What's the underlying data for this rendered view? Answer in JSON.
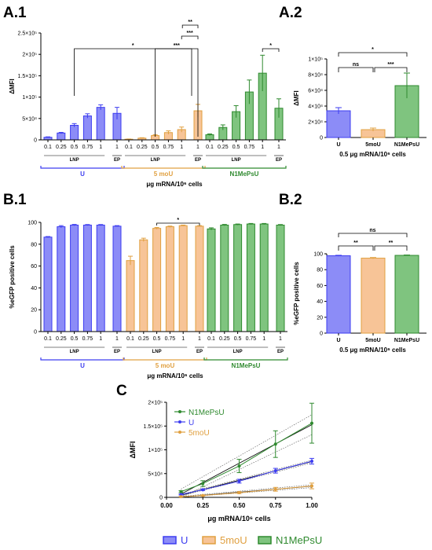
{
  "colors": {
    "U": "#3d3df0",
    "U_fill": "#8c8cf7",
    "5moU": "#e0a040",
    "5moU_fill": "#f7c497",
    "N1MePsU": "#2f8a2f",
    "N1MePsU_fill": "#7fc47f"
  },
  "panels": {
    "a1": {
      "label": "A.1"
    },
    "a2": {
      "label": "A.2"
    },
    "b1": {
      "label": "B.1"
    },
    "b2": {
      "label": "B.2"
    },
    "c": {
      "label": "C"
    }
  },
  "legend": {
    "items": [
      "U",
      "5moU",
      "N1MePsU"
    ]
  },
  "chart_data": [
    {
      "id": "A.1",
      "type": "bar",
      "ylabel": "ΔMFI",
      "xlabel": "μg mRNA/10⁶ cells",
      "ylim": [
        0,
        250000
      ],
      "yticks": [
        0,
        50000,
        100000,
        150000,
        200000,
        250000
      ],
      "ytick_labels": [
        "0",
        "5×10⁴",
        "1×10⁵",
        "1.5×10⁵",
        "2×10⁵",
        "2.5×10⁵"
      ],
      "categories": [
        "0.1",
        "0.25",
        "0.5",
        "0.75",
        "1",
        "1"
      ],
      "sublabels": [
        "LNP",
        "EP"
      ],
      "series": [
        {
          "name": "U",
          "values": [
            6000,
            16000,
            34000,
            56000,
            76000,
            62000
          ],
          "errors": [
            1000,
            1500,
            4000,
            5000,
            6000,
            14000
          ]
        },
        {
          "name": "5 moU",
          "values": [
            1500,
            4000,
            10000,
            17000,
            24000,
            68000
          ],
          "errors": [
            500,
            1000,
            2000,
            4000,
            6000,
            15000
          ]
        },
        {
          "name": "N1MePsU",
          "values": [
            12000,
            29000,
            66000,
            112000,
            156000,
            74000
          ],
          "errors": [
            2000,
            6000,
            14000,
            28000,
            42000,
            22000
          ]
        }
      ],
      "significance": [
        {
          "text": "*",
          "from": "U 0.5",
          "to": "U 1 EP"
        },
        {
          "text": "***",
          "from": "5moU 0.5",
          "to": "5moU 1 EP"
        },
        {
          "text": "***",
          "from": "5moU 1",
          "to": "5moU 1 EP"
        },
        {
          "text": "**",
          "from": "5moU 1 LNP",
          "to": "5moU 1 EP"
        },
        {
          "text": "*",
          "from": "N1MePsU 1",
          "to": "N1MePsU 1 EP"
        }
      ]
    },
    {
      "id": "A.2",
      "type": "bar",
      "ylabel": "ΔMFI",
      "xlabel": "0.5 μg mRNA/10⁶ cells",
      "ylim": [
        0,
        100000
      ],
      "yticks": [
        0,
        20000,
        40000,
        60000,
        80000,
        100000
      ],
      "ytick_labels": [
        "0",
        "2×10⁴",
        "4×10⁴",
        "6×10⁴",
        "8×10⁴",
        "1×10⁵"
      ],
      "categories": [
        "U",
        "5moU",
        "N1MePsU"
      ],
      "values": [
        34000,
        10000,
        66000
      ],
      "errors": [
        4000,
        2000,
        16000
      ],
      "significance": [
        {
          "text": "ns",
          "from": "U",
          "to": "5moU"
        },
        {
          "text": "***",
          "from": "5moU",
          "to": "N1MePsU"
        },
        {
          "text": "*",
          "from": "U",
          "to": "N1MePsU"
        }
      ]
    },
    {
      "id": "B.1",
      "type": "bar",
      "ylabel": "%eGFP positive cells",
      "xlabel": "μg mRNA/10⁶ cells",
      "ylim": [
        0,
        100
      ],
      "yticks": [
        0,
        20,
        40,
        60,
        80,
        100
      ],
      "ytick_labels": [
        "0",
        "20",
        "40",
        "60",
        "80",
        "100"
      ],
      "categories": [
        "0.1",
        "0.25",
        "0.5",
        "0.75",
        "1",
        "1"
      ],
      "sublabels": [
        "LNP",
        "EP"
      ],
      "series": [
        {
          "name": "U",
          "values": [
            86.5,
            96,
            97.5,
            97.5,
            97.5,
            96.5
          ],
          "errors": [
            0.5,
            1,
            0.6,
            0.5,
            0.5,
            0.5
          ]
        },
        {
          "name": "5 moU",
          "values": [
            65,
            84,
            94.5,
            96,
            97,
            96.5
          ],
          "errors": [
            4,
            1.5,
            0.8,
            0.6,
            0.5,
            0.5
          ]
        },
        {
          "name": "N1MePsU",
          "values": [
            94,
            97.5,
            98,
            98.5,
            98.5,
            97.5
          ],
          "errors": [
            1,
            0.6,
            0.5,
            0.5,
            0.5,
            0.5
          ]
        }
      ],
      "significance": [
        {
          "text": "*",
          "from": "5moU 0.5",
          "to": "5moU 1 EP"
        }
      ]
    },
    {
      "id": "B.2",
      "type": "bar",
      "ylabel": "%eGFP positive cells",
      "xlabel": "0.5 μg mRNA/10⁶ cells",
      "ylim": [
        0,
        100
      ],
      "yticks": [
        0,
        20,
        40,
        60,
        80,
        100
      ],
      "ytick_labels": [
        "0",
        "20",
        "40",
        "60",
        "80",
        "100"
      ],
      "categories": [
        "U",
        "5moU",
        "N1MePsU"
      ],
      "values": [
        97.5,
        94.5,
        98
      ],
      "errors": [
        0.6,
        0.8,
        0.5
      ],
      "significance": [
        {
          "text": "**",
          "from": "U",
          "to": "5moU"
        },
        {
          "text": "**",
          "from": "5moU",
          "to": "N1MePsU"
        },
        {
          "text": "ns",
          "from": "U",
          "to": "N1MePsU"
        }
      ]
    },
    {
      "id": "C",
      "type": "line",
      "ylabel": "ΔMFI",
      "xlabel": "μg mRNA/10⁶ cells",
      "xlim": [
        0,
        1
      ],
      "xticks": [
        0,
        0.25,
        0.5,
        0.75,
        1
      ],
      "xtick_labels": [
        "0.00",
        "0.25",
        "0.50",
        "0.75",
        "1.00"
      ],
      "ylim": [
        0,
        200000
      ],
      "yticks": [
        0,
        50000,
        100000,
        150000,
        200000
      ],
      "ytick_labels": [
        "0",
        "5×10⁴",
        "1×10⁵",
        "1.5×10⁵",
        "2×10⁵"
      ],
      "x": [
        0.1,
        0.25,
        0.5,
        0.75,
        1
      ],
      "legend_position": "top-left",
      "series": [
        {
          "name": "N1MePsU",
          "values": [
            12000,
            29000,
            66000,
            112000,
            156000
          ],
          "errors": [
            2000,
            6000,
            14000,
            28000,
            42000
          ]
        },
        {
          "name": "U",
          "values": [
            6000,
            16000,
            34000,
            56000,
            76000
          ],
          "errors": [
            1000,
            1500,
            4000,
            5000,
            6000
          ]
        },
        {
          "name": "5moU",
          "values": [
            1500,
            4000,
            10000,
            17000,
            24000
          ],
          "errors": [
            500,
            1000,
            2000,
            4000,
            6000
          ]
        }
      ]
    }
  ]
}
